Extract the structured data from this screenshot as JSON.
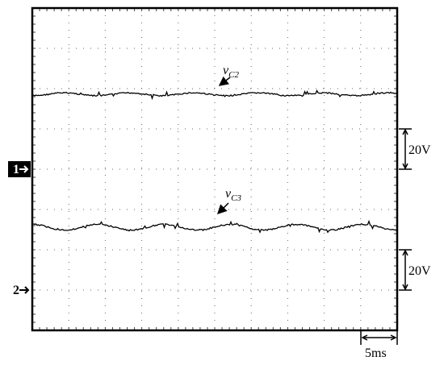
{
  "traces": [
    {
      "label": {
        "symbol": "v",
        "subscript": "C2"
      }
    },
    {
      "label": {
        "symbol": "v",
        "subscript": "C3"
      }
    }
  ],
  "channels": [
    "1",
    "2"
  ],
  "scales": {
    "vertical": [
      "20V",
      "20V"
    ],
    "horizontal": "5ms"
  }
}
